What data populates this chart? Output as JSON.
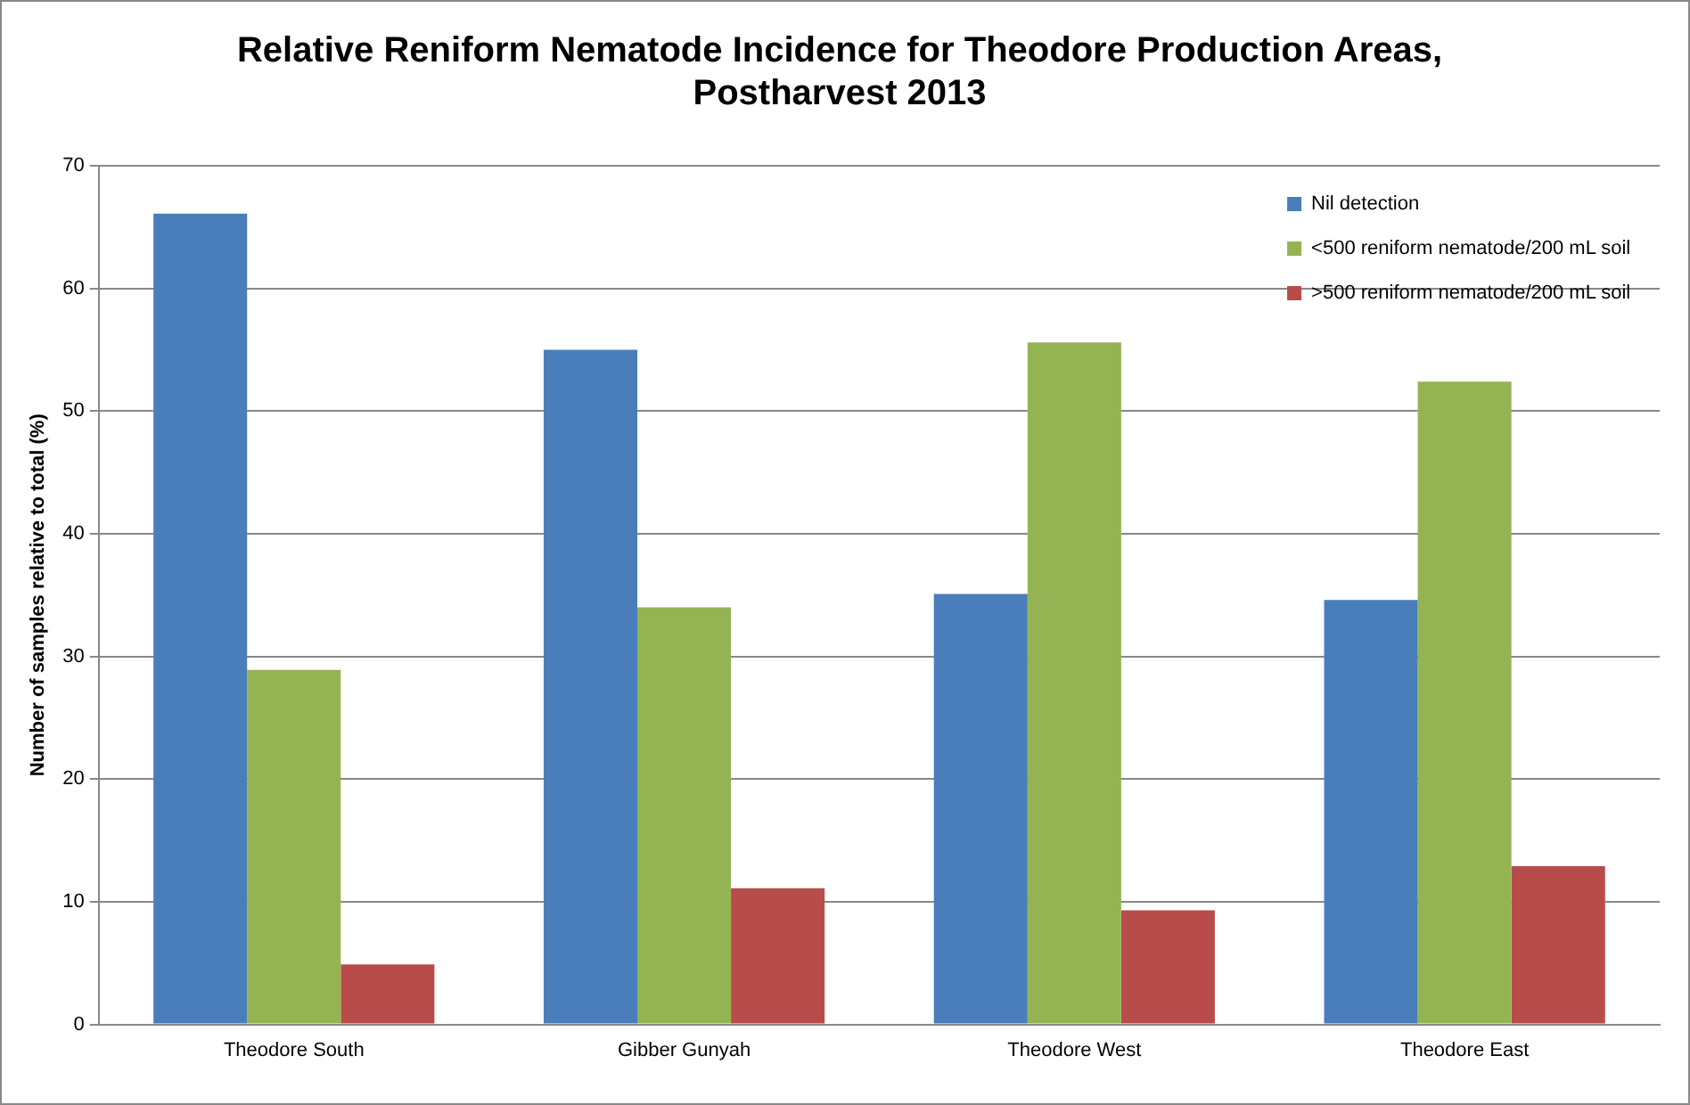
{
  "chart_data": {
    "type": "bar",
    "title": "Relative Reniform Nematode Incidence for Theodore Production Areas, Postharvest 2013",
    "ylabel": "Number of samples relative to total (%)",
    "categories": [
      "Theodore South",
      "Gibber Gunyah",
      "Theodore West",
      "Theodore East"
    ],
    "series": [
      {
        "name": "Nil detection",
        "color": "#4a7ebb",
        "values": [
          66.1,
          55.0,
          35.1,
          34.6
        ]
      },
      {
        "name": "<500 reniform nematode/200 mL soil",
        "color": "#94b454",
        "values": [
          28.9,
          34.0,
          55.6,
          52.4
        ]
      },
      {
        "name": ">500 reniform nematode/200 mL soil",
        "color": "#b84c4a",
        "values": [
          4.9,
          11.1,
          9.3,
          12.9
        ]
      }
    ],
    "ylim": [
      0,
      70
    ],
    "yticks": [
      0,
      10,
      20,
      30,
      40,
      50,
      60,
      70
    ],
    "grid": "y",
    "legend": "top right"
  }
}
